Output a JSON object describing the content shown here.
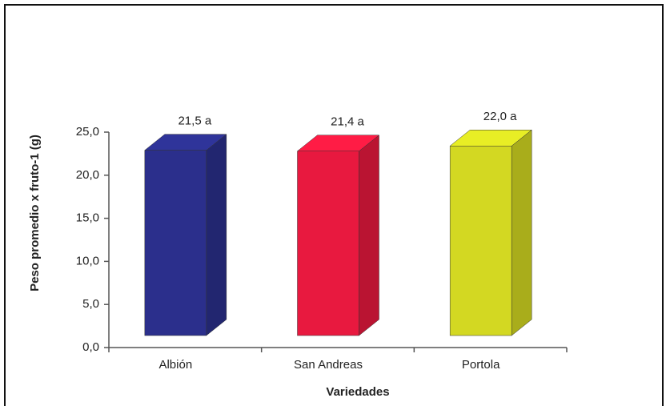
{
  "chart_data": {
    "type": "bar3d",
    "categories": [
      "Albión",
      "San Andreas",
      "Portola"
    ],
    "values": [
      21.5,
      21.4,
      22.0
    ],
    "value_labels": [
      "21,5 a",
      "21,4 a",
      "22,0 a"
    ],
    "colors": [
      "#2b2f8c",
      "#e8193f",
      "#d3d822"
    ],
    "ylim": [
      0,
      25
    ],
    "yticks": [
      {
        "value": 0,
        "label": "0,0"
      },
      {
        "value": 5,
        "label": "5,0"
      },
      {
        "value": 10,
        "label": "10,0"
      },
      {
        "value": 15,
        "label": "15,0"
      },
      {
        "value": 20,
        "label": "20,0"
      },
      {
        "value": 25,
        "label": "25,0"
      }
    ],
    "xlabel": "Variedades",
    "ylabel": "Peso promedio x fruto-1 (g)"
  }
}
